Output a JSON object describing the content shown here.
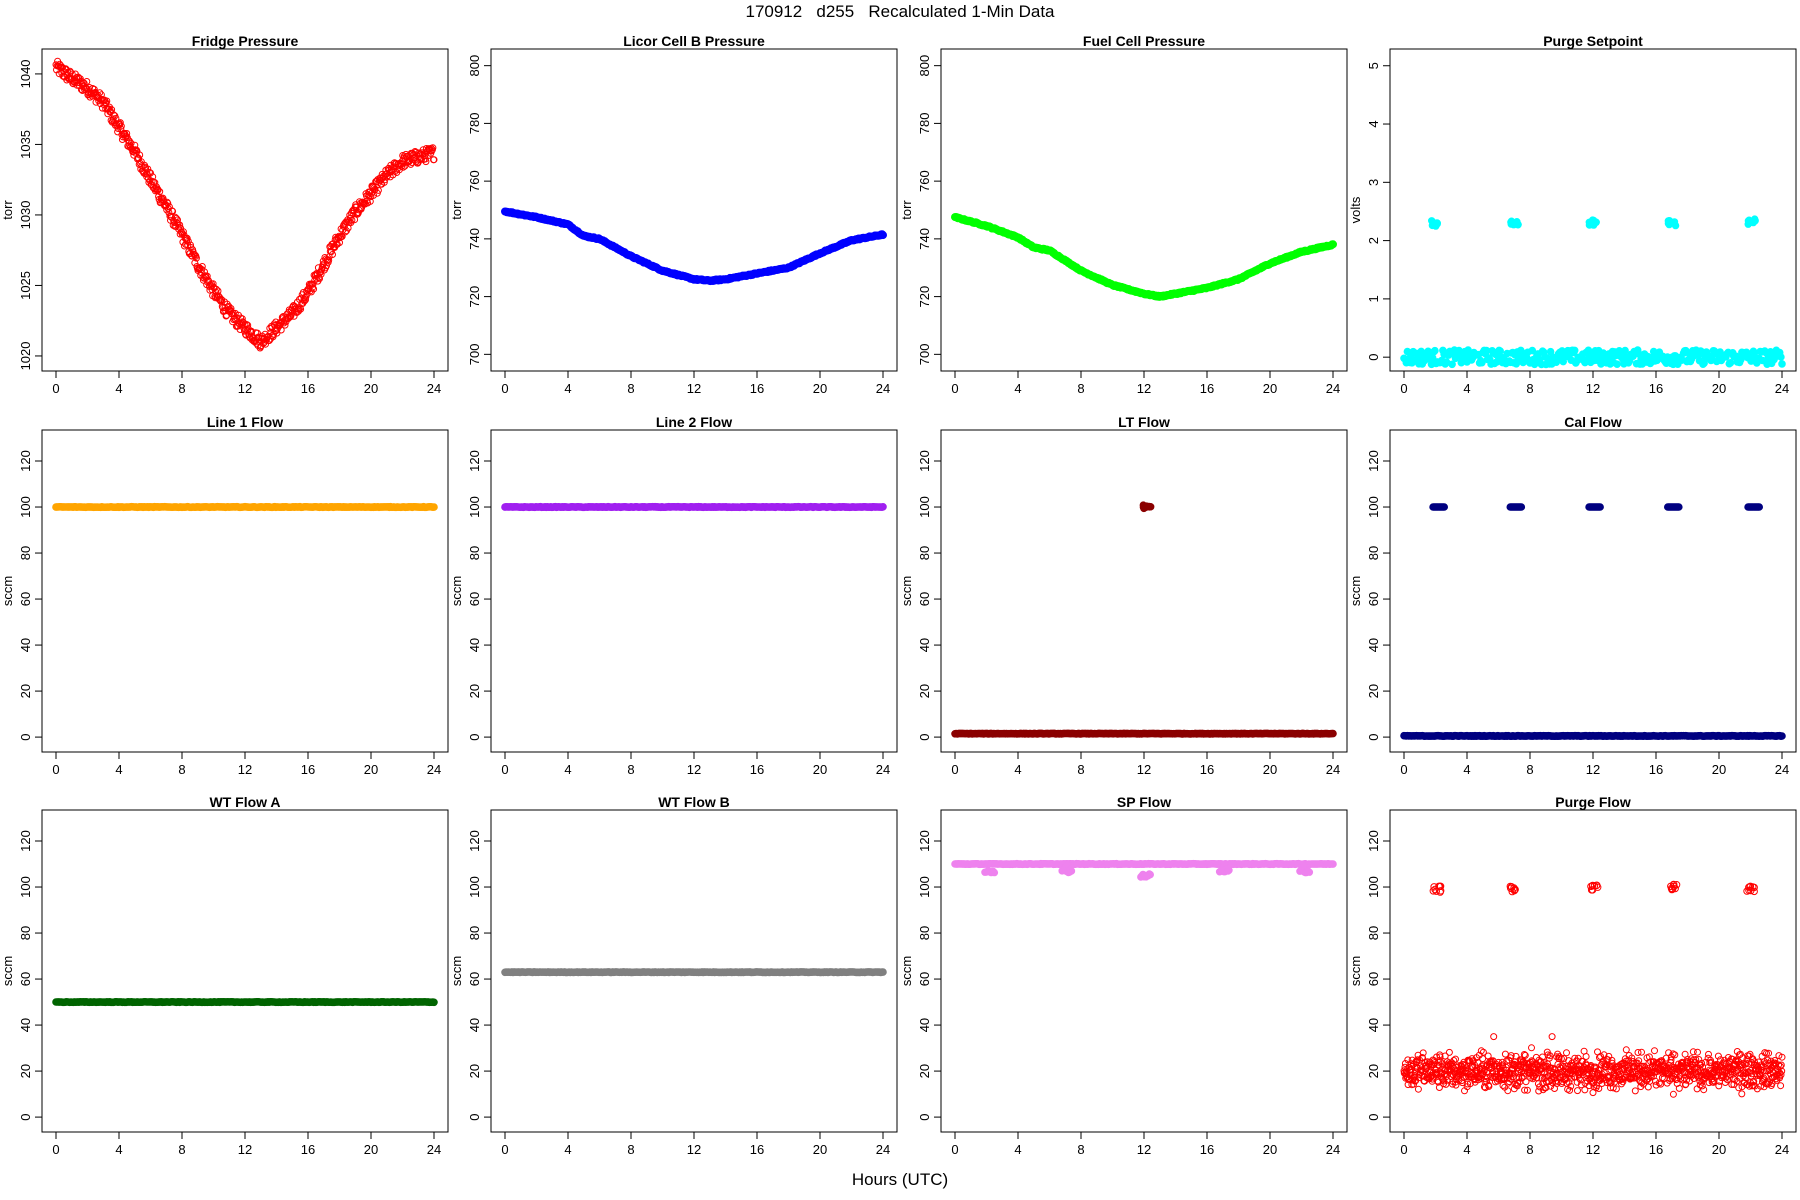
{
  "header": {
    "title": "170912   d255   Recalculated 1-Min Data"
  },
  "footer": {
    "xlabel": "Hours (UTC)"
  },
  "chart_data": [
    {
      "type": "scatter",
      "title": "Fridge Pressure",
      "xlabel": "",
      "ylabel": "torr",
      "xlim": [
        0,
        24
      ],
      "ylim": [
        1019.5,
        1041.2
      ],
      "xticks": [
        0,
        4,
        8,
        12,
        16,
        20,
        24
      ],
      "yticks": [
        1020,
        1025,
        1030,
        1035,
        1040
      ],
      "grid": false,
      "marker": "open-circle",
      "color": "#ff0000",
      "series": [
        {
          "x": [
            0,
            1,
            2,
            3,
            4,
            5,
            6,
            7,
            8,
            9,
            10,
            11,
            12,
            13,
            14,
            15,
            16,
            17,
            18,
            19,
            20,
            21,
            22,
            23,
            24
          ],
          "y": [
            1040.5,
            1039.7,
            1039,
            1038,
            1036.2,
            1034.5,
            1032.5,
            1030.6,
            1028.6,
            1026.5,
            1024.6,
            1023,
            1022,
            1021,
            1022,
            1023,
            1024.5,
            1026.5,
            1028.5,
            1030.2,
            1031.5,
            1032.8,
            1033.8,
            1034.1,
            1034.4
          ]
        }
      ]
    },
    {
      "type": "scatter",
      "title": "Licor Cell B Pressure",
      "xlabel": "",
      "ylabel": "torr",
      "xlim": [
        0,
        24
      ],
      "ylim": [
        697,
        803
      ],
      "xticks": [
        0,
        4,
        8,
        12,
        16,
        20,
        24
      ],
      "yticks": [
        700,
        720,
        740,
        760,
        780,
        800
      ],
      "grid": false,
      "marker": "filled-circle",
      "color": "#0000ff",
      "series": [
        {
          "x": [
            0,
            2,
            4,
            5,
            6,
            8,
            10,
            12,
            13,
            14,
            16,
            18,
            20,
            22,
            24
          ],
          "y": [
            749.5,
            747.5,
            745,
            741,
            740,
            734,
            729,
            726,
            725.5,
            726,
            728,
            730,
            735,
            739.5,
            741.5
          ]
        }
      ]
    },
    {
      "type": "scatter",
      "title": "Fuel Cell Pressure",
      "xlabel": "",
      "ylabel": "torr",
      "xlim": [
        0,
        24
      ],
      "ylim": [
        697,
        803
      ],
      "xticks": [
        0,
        4,
        8,
        12,
        16,
        20,
        24
      ],
      "yticks": [
        700,
        720,
        740,
        760,
        780,
        800
      ],
      "grid": false,
      "marker": "filled-circle",
      "color": "#00ff00",
      "series": [
        {
          "x": [
            0,
            2,
            4,
            5,
            6,
            8,
            10,
            12,
            13,
            14,
            16,
            18,
            20,
            22,
            24
          ],
          "y": [
            747.5,
            744.5,
            740.5,
            737,
            736,
            729,
            724,
            721,
            720,
            721,
            723,
            726,
            731.5,
            735.5,
            738
          ]
        }
      ]
    },
    {
      "type": "scatter",
      "title": "Purge Setpoint",
      "xlabel": "",
      "ylabel": "volts",
      "xlim": [
        0,
        24
      ],
      "ylim": [
        -0.1,
        5.15
      ],
      "xticks": [
        0,
        4,
        8,
        12,
        16,
        20,
        24
      ],
      "yticks": [
        0,
        1,
        2,
        3,
        4,
        5
      ],
      "grid": false,
      "marker": "filled-circle",
      "color": "#00ffff",
      "series": [
        {
          "x": [
            0,
            24
          ],
          "y": [
            0,
            0
          ],
          "style": "band"
        },
        {
          "x": [
            2,
            7,
            12,
            17,
            22.1
          ],
          "y": [
            2.3,
            2.3,
            2.3,
            2.3,
            2.32
          ],
          "style": "clusters"
        }
      ]
    },
    {
      "type": "scatter",
      "title": "Line 1 Flow",
      "xlabel": "",
      "ylabel": "sccm",
      "xlim": [
        0,
        24
      ],
      "ylim": [
        -3,
        130
      ],
      "xticks": [
        0,
        4,
        8,
        12,
        16,
        20,
        24
      ],
      "yticks": [
        0,
        20,
        40,
        60,
        80,
        100,
        120
      ],
      "grid": false,
      "marker": "filled-circle",
      "color": "#ffa500",
      "series": [
        {
          "x": [
            0,
            24
          ],
          "y": [
            100,
            100
          ],
          "style": "band"
        }
      ]
    },
    {
      "type": "scatter",
      "title": "Line 2 Flow",
      "xlabel": "",
      "ylabel": "sccm",
      "xlim": [
        0,
        24
      ],
      "ylim": [
        -3,
        130
      ],
      "xticks": [
        0,
        4,
        8,
        12,
        16,
        20,
        24
      ],
      "yticks": [
        0,
        20,
        40,
        60,
        80,
        100,
        120
      ],
      "grid": false,
      "marker": "filled-circle",
      "color": "#a020f0",
      "series": [
        {
          "x": [
            0,
            24
          ],
          "y": [
            100,
            100
          ],
          "style": "band"
        }
      ]
    },
    {
      "type": "scatter",
      "title": "LT Flow",
      "xlabel": "",
      "ylabel": "sccm",
      "xlim": [
        0,
        24
      ],
      "ylim": [
        -3,
        130
      ],
      "xticks": [
        0,
        4,
        8,
        12,
        16,
        20,
        24
      ],
      "yticks": [
        0,
        20,
        40,
        60,
        80,
        100,
        120
      ],
      "grid": false,
      "marker": "filled-circle",
      "color": "#8b0000",
      "series": [
        {
          "x": [
            0,
            24
          ],
          "y": [
            1.5,
            1.5
          ],
          "style": "band"
        },
        {
          "x": [
            12.2
          ],
          "y": [
            100
          ],
          "style": "clusters"
        }
      ]
    },
    {
      "type": "scatter",
      "title": "Cal Flow",
      "xlabel": "",
      "ylabel": "sccm",
      "xlim": [
        0,
        24
      ],
      "ylim": [
        -3,
        130
      ],
      "xticks": [
        0,
        4,
        8,
        12,
        16,
        20,
        24
      ],
      "yticks": [
        0,
        20,
        40,
        60,
        80,
        100,
        120
      ],
      "grid": false,
      "marker": "filled-circle",
      "color": "#000080",
      "series": [
        {
          "x": [
            0,
            24
          ],
          "y": [
            0.5,
            0.5
          ],
          "style": "band"
        },
        {
          "x": [
            2.2,
            7.1,
            12.1,
            17.1,
            22.2
          ],
          "y": [
            100,
            100,
            100,
            100,
            100
          ],
          "style": "segments"
        }
      ]
    },
    {
      "type": "scatter",
      "title": "WT Flow A",
      "xlabel": "",
      "ylabel": "sccm",
      "xlim": [
        0,
        24
      ],
      "ylim": [
        -3,
        130
      ],
      "xticks": [
        0,
        4,
        8,
        12,
        16,
        20,
        24
      ],
      "yticks": [
        0,
        20,
        40,
        60,
        80,
        100,
        120
      ],
      "grid": false,
      "marker": "filled-circle",
      "color": "#006400",
      "series": [
        {
          "x": [
            0,
            24
          ],
          "y": [
            50,
            50
          ],
          "style": "band"
        }
      ]
    },
    {
      "type": "scatter",
      "title": "WT Flow B",
      "xlabel": "",
      "ylabel": "sccm",
      "xlim": [
        0,
        24
      ],
      "ylim": [
        -3,
        130
      ],
      "xticks": [
        0,
        4,
        8,
        12,
        16,
        20,
        24
      ],
      "yticks": [
        0,
        20,
        40,
        60,
        80,
        100,
        120
      ],
      "grid": false,
      "marker": "filled-circle",
      "color": "#808080",
      "series": [
        {
          "x": [
            0,
            24
          ],
          "y": [
            63,
            63
          ],
          "style": "band"
        }
      ]
    },
    {
      "type": "scatter",
      "title": "SP Flow",
      "xlabel": "",
      "ylabel": "sccm",
      "xlim": [
        0,
        24
      ],
      "ylim": [
        -3,
        130
      ],
      "xticks": [
        0,
        4,
        8,
        12,
        16,
        20,
        24
      ],
      "yticks": [
        0,
        20,
        40,
        60,
        80,
        100,
        120
      ],
      "grid": false,
      "marker": "filled-circle",
      "color": "#ee82ee",
      "series": [
        {
          "x": [
            0,
            24
          ],
          "y": [
            110,
            110
          ],
          "style": "band"
        },
        {
          "x": [
            2.2,
            7.1,
            12.1,
            17.1,
            22.2
          ],
          "y": [
            107,
            107,
            105,
            107,
            107
          ],
          "style": "dips"
        }
      ]
    },
    {
      "type": "scatter",
      "title": "Purge Flow",
      "xlabel": "",
      "ylabel": "sccm",
      "xlim": [
        0,
        24
      ],
      "ylim": [
        -3,
        130
      ],
      "xticks": [
        0,
        4,
        8,
        12,
        16,
        20,
        24
      ],
      "yticks": [
        0,
        20,
        40,
        60,
        80,
        100,
        120
      ],
      "grid": false,
      "marker": "open-circle",
      "color": "#ff0000",
      "series": [
        {
          "x": [
            0,
            24
          ],
          "y": [
            20,
            20
          ],
          "spread": [
            10,
            35
          ],
          "style": "noise"
        },
        {
          "x": [
            2.1,
            7,
            12.1,
            17.1,
            22
          ],
          "y": [
            99,
            99,
            100,
            100,
            99
          ],
          "style": "clusters"
        }
      ]
    }
  ]
}
